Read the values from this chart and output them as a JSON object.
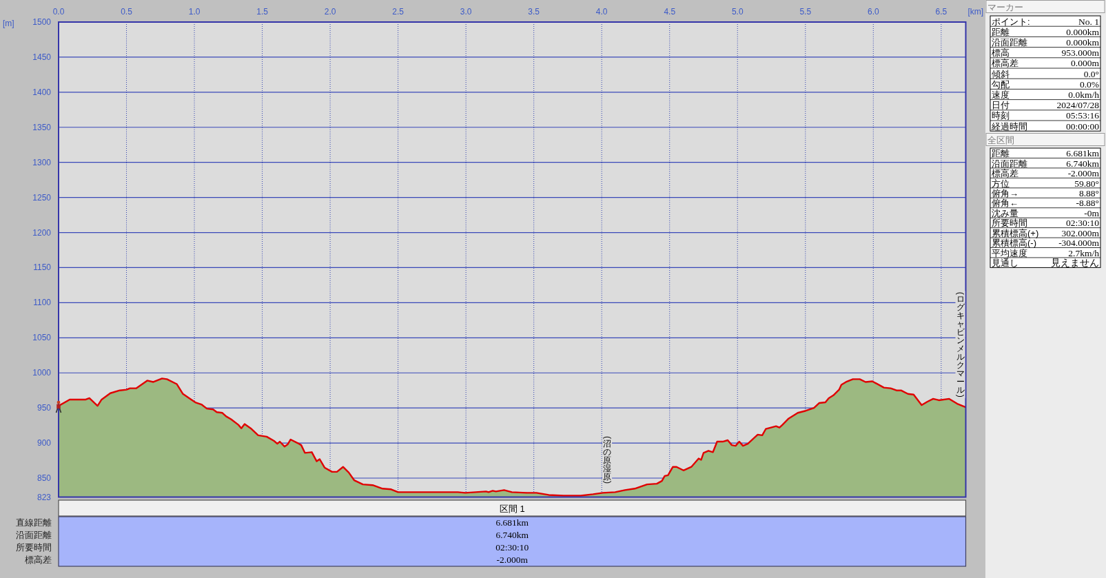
{
  "chart_data": [
    {
      "type": "area",
      "xlabel": "[km]",
      "ylabel": "[m]",
      "xlim": [
        0,
        6.681
      ],
      "ylim": [
        823,
        1500
      ],
      "xticks": [
        {
          "value": 0,
          "label": "0.0"
        },
        0.5,
        {
          "value": 1,
          "label": "1.0"
        },
        1.5,
        {
          "value": 2,
          "label": "2.0"
        },
        2.5,
        {
          "value": 3,
          "label": "3.0"
        },
        3.5,
        {
          "value": 4,
          "label": "4.0"
        },
        4.5,
        {
          "value": 5,
          "label": "5.0"
        },
        5.5,
        {
          "value": 6,
          "label": "6.0"
        },
        6.5
      ],
      "yticks": [
        823,
        850,
        900,
        950,
        1000,
        1050,
        1100,
        1150,
        1200,
        1250,
        1300,
        1350,
        1400,
        1450,
        1500
      ],
      "grid": true,
      "color": "#e00000",
      "x": [
        0,
        0.082,
        0.2,
        0.227,
        0.287,
        0.317,
        0.381,
        0.45,
        0.5,
        0.526,
        0.571,
        0.653,
        0.698,
        0.762,
        0.798,
        0.871,
        0.916,
        0.962,
        1.007,
        1.052,
        1.092,
        1.138,
        1.165,
        1.206,
        1.234,
        1.27,
        1.324,
        1.346,
        1.37,
        1.415,
        1.47,
        1.533,
        1.587,
        1.611,
        1.629,
        1.664,
        1.687,
        1.709,
        1.76,
        1.787,
        1.814,
        1.865,
        1.901,
        1.923,
        1.959,
        2.014,
        2.05,
        2.095,
        2.137,
        2.177,
        2.241,
        2.313,
        2.386,
        2.449,
        2.5,
        2.594,
        2.705,
        2.795,
        2.94,
        2.995,
        3.148,
        3.167,
        3.197,
        3.221,
        3.281,
        3.338,
        3.447,
        3.519,
        3.61,
        3.719,
        3.845,
        3.936,
        4.008,
        4.099,
        4.171,
        4.243,
        4.334,
        4.406,
        4.443,
        4.464,
        4.488,
        4.524,
        4.551,
        4.602,
        4.66,
        4.714,
        4.732,
        4.75,
        4.786,
        4.819,
        4.85,
        4.891,
        4.928,
        4.958,
        4.986,
        5.013,
        5.04,
        5.076,
        5.121,
        5.149,
        5.182,
        5.208,
        5.284,
        5.309,
        5.331,
        5.377,
        5.444,
        5.503,
        5.563,
        5.601,
        5.647,
        5.672,
        5.706,
        5.748,
        5.765,
        5.799,
        5.85,
        5.9,
        5.943,
        5.993,
        6.078,
        6.128,
        6.171,
        6.204,
        6.255,
        6.297,
        6.356,
        6.399,
        6.441,
        6.483,
        6.559,
        6.618,
        6.681
      ],
      "series": [
        {
          "color": "#9cb981",
          "values": [
            953,
            962,
            962,
            964,
            953,
            962,
            971,
            975,
            976,
            978,
            978,
            989,
            987,
            992,
            991,
            984,
            970,
            964,
            958,
            955,
            949,
            948,
            944,
            943,
            938,
            934,
            926,
            921,
            927,
            921,
            911,
            909,
            903,
            899,
            902,
            895,
            898,
            905,
            900,
            897,
            886,
            887,
            874,
            877,
            865,
            859,
            859,
            866,
            858,
            847,
            841,
            840,
            835,
            834,
            830,
            830,
            830,
            830,
            830,
            829,
            831,
            830,
            832,
            831,
            833,
            830,
            829,
            829,
            826,
            825,
            825,
            827,
            829,
            830,
            833,
            835,
            841,
            842,
            846,
            853,
            854,
            866,
            866,
            861,
            866,
            878,
            876,
            886,
            889,
            887,
            902,
            902,
            904,
            897,
            896,
            902,
            896,
            899,
            907,
            912,
            911,
            920,
            924,
            922,
            926,
            935,
            943,
            946,
            950,
            957,
            958,
            964,
            968,
            976,
            983,
            987,
            991,
            991,
            987,
            988,
            979,
            978,
            975,
            975,
            970,
            969,
            954,
            959,
            963,
            961,
            963,
            956,
            951
          ]
        }
      ],
      "annotations": [
        {
          "text": "(沼の原湿原)",
          "x": 4.04,
          "y": 828
        },
        "(ログキャビンメルクマール)"
      ]
    },
    {
      "type": "other",
      "title": "マーカー",
      "annotations": [
        "ポイント:",
        "No. 1",
        "距離",
        "0.000km",
        "沿面距離",
        "0.000km",
        "標高",
        "953.000m",
        "標高差",
        "0.000m",
        "傾斜",
        "0.0°",
        "勾配",
        "0.0%",
        "速度",
        "0.0km/h",
        "日付",
        "2024/07/28",
        "時刻",
        "05:53:16",
        "経過時間",
        "00:00:00"
      ]
    },
    {
      "type": "other",
      "title": "全区間",
      "annotations": [
        "距離",
        "6.681km",
        "沿面距離",
        "6.740km",
        "標高差",
        "-2.000m",
        "方位",
        "59.80°",
        "俯角→",
        "8.88°",
        "俯角←",
        "-8.88°",
        "沈み量",
        "-0m",
        "所要時間",
        "02:30:10",
        "累積標高(+)",
        "302.000m",
        "累積標高(-)",
        "-304.000m",
        "平均速度",
        "2.7km/h",
        "見通し",
        "見えません"
      ]
    },
    {
      "type": "other",
      "title": "区間 1",
      "annotations": [
        "直線距離",
        "6.681km",
        "沿面距離",
        "6.740km",
        "所要時間",
        "02:30:10",
        "標高差",
        "-2.000m"
      ]
    }
  ]
}
